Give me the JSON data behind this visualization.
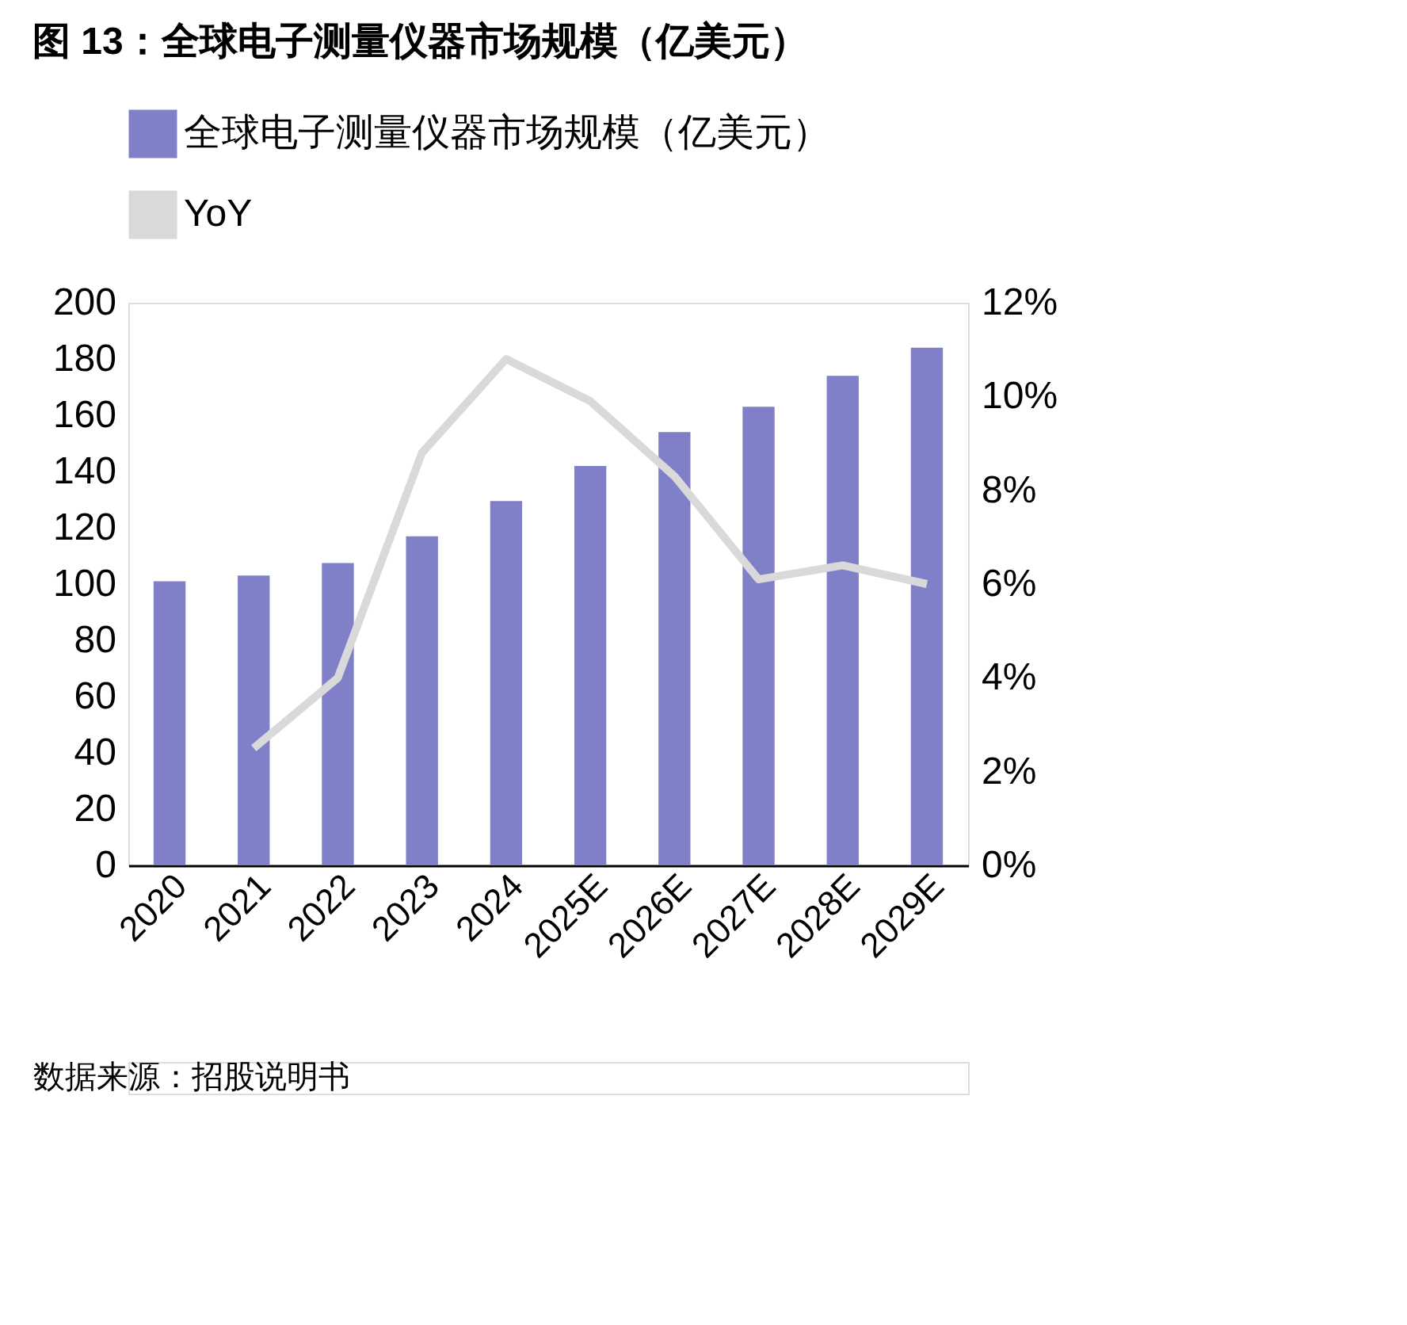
{
  "chart_data": {
    "type": "bar",
    "title": "图 13：全球电子测量仪器市场规模（亿美元）",
    "categories": [
      "2020",
      "2021",
      "2022",
      "2023",
      "2024",
      "2025E",
      "2026E",
      "2027E",
      "2028E",
      "2029E"
    ],
    "series": [
      {
        "name": "全球电子测量仪器市场规模（亿美元）",
        "color": "#8080c8",
        "values": [
          101,
          103,
          107.5,
          117,
          129.5,
          142,
          154,
          163,
          174,
          184
        ]
      },
      {
        "name": "YoY",
        "type": "line",
        "axis": "y2",
        "color": "#d9d9d9",
        "values": [
          null,
          2.5,
          4.0,
          8.8,
          10.8,
          9.9,
          8.3,
          6.1,
          6.4,
          6.0
        ]
      }
    ],
    "ylim": [
      0,
      200
    ],
    "yticks": [
      0,
      20,
      40,
      60,
      80,
      100,
      120,
      140,
      160,
      180,
      200
    ],
    "y2lim": [
      0,
      12
    ],
    "y2ticks": [
      {
        "value": 0,
        "label": "0%"
      },
      {
        "value": 2,
        "label": "2%"
      },
      {
        "value": 4,
        "label": "4%"
      },
      {
        "value": 6,
        "label": "6%"
      },
      {
        "value": 8,
        "label": "8%"
      },
      {
        "value": 10,
        "label": "10%"
      },
      {
        "value": 12,
        "label": "12%"
      }
    ],
    "grid": false,
    "legend": "top",
    "marker": "none",
    "annotations": [
      "数据来源：招股说明书"
    ]
  }
}
